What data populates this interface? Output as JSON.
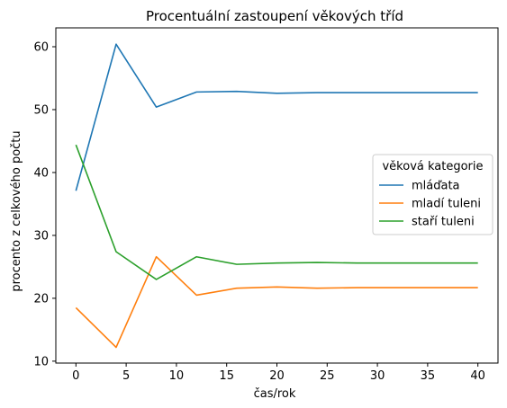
{
  "chart_data": {
    "type": "line",
    "title": "Procentuální zastoupení věkových tříd",
    "xlabel": "čas/rok",
    "ylabel": "procento z celkového počtu",
    "xlim": [
      -2,
      42
    ],
    "ylim": [
      9.7,
      63.0
    ],
    "xticks": [
      0,
      5,
      10,
      15,
      20,
      25,
      30,
      35,
      40
    ],
    "yticks": [
      10,
      20,
      30,
      40,
      50,
      60
    ],
    "grid": false,
    "legend": {
      "title": "věková kategorie",
      "placement": "center-right"
    },
    "x": [
      0,
      4,
      8,
      12,
      16,
      20,
      24,
      28,
      32,
      36,
      40
    ],
    "series": [
      {
        "name": "mláďata",
        "color": "#1f77b4",
        "values": [
          37.1,
          60.4,
          50.4,
          52.8,
          52.9,
          52.6,
          52.7,
          52.7,
          52.7,
          52.7,
          52.7
        ]
      },
      {
        "name": "mladí tuleni",
        "color": "#ff7f0e",
        "values": [
          18.5,
          12.2,
          26.6,
          20.5,
          21.6,
          21.8,
          21.6,
          21.7,
          21.7,
          21.7,
          21.7
        ]
      },
      {
        "name": "staří tuleni",
        "color": "#2ca02c",
        "values": [
          44.4,
          27.4,
          23.0,
          26.6,
          25.4,
          25.6,
          25.7,
          25.6,
          25.6,
          25.6,
          25.6
        ]
      }
    ]
  }
}
